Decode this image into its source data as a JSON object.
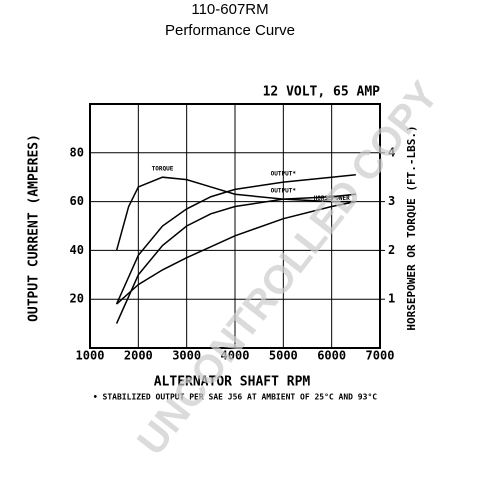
{
  "chart_data": {
    "type": "line",
    "title": "110-607RM",
    "subtitle": "Performance Curve",
    "rating": "12 VOLT, 65 AMP",
    "x_label": "ALTERNATOR SHAFT RPM",
    "y_label": "OUTPUT CURRENT (AMPERES)",
    "y2_label": "HORSEPOWER OR TORQUE (FT.-LBS.)",
    "footnote": "• STABILIZED OUTPUT PER SAE J56 AT AMBIENT OF 25°C AND 93°C",
    "watermark": "UNCONTROLLED COPY",
    "xlim": [
      1000,
      7000
    ],
    "xticks": [
      1000,
      2000,
      3000,
      4000,
      5000,
      6000,
      7000
    ],
    "ylim": [
      0,
      100
    ],
    "yticks": [
      20,
      40,
      60,
      80
    ],
    "y2lim": [
      0,
      5
    ],
    "y2ticks": [
      1,
      2,
      3,
      4
    ],
    "grid": true,
    "series": [
      {
        "name": "TORQUE",
        "color": "#000000",
        "axis": "y2",
        "x": [
          1550,
          1800,
          2000,
          2500,
          3000,
          3500,
          4000,
          5000,
          6000,
          6500
        ],
        "values": [
          2.0,
          2.9,
          3.3,
          3.5,
          3.45,
          3.3,
          3.15,
          3.05,
          3.0,
          3.0
        ]
      },
      {
        "name": "OUTPUT*",
        "color": "#000000",
        "x": [
          1550,
          2000,
          2500,
          3000,
          3500,
          4000,
          5000,
          6000,
          6500
        ],
        "values": [
          18,
          38,
          50,
          57,
          62,
          65,
          68,
          70,
          71
        ]
      },
      {
        "name": "OUTPUT*",
        "color": "#000000",
        "x": [
          1550,
          2000,
          2500,
          3000,
          3500,
          4000,
          5000,
          6000,
          6500
        ],
        "values": [
          10,
          30,
          42,
          50,
          55,
          58,
          61,
          62,
          63
        ]
      },
      {
        "name": "HORSEPOWER",
        "color": "#000000",
        "axis": "y2",
        "x": [
          1550,
          2000,
          2500,
          3000,
          4000,
          5000,
          6000,
          6500
        ],
        "values": [
          0.9,
          1.3,
          1.6,
          1.85,
          2.3,
          2.65,
          2.9,
          3.0
        ]
      }
    ]
  }
}
